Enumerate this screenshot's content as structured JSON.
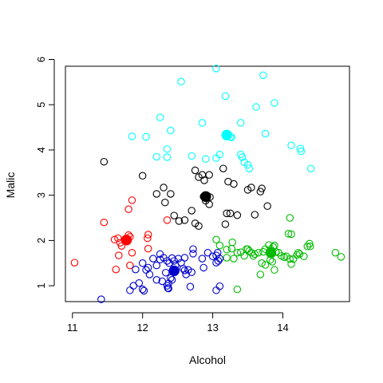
{
  "chart_data": {
    "type": "scatter",
    "xlabel": "Alcohol",
    "ylabel": "Malic",
    "xlim": [
      10.9,
      14.95
    ],
    "ylim": [
      0.65,
      5.85
    ],
    "xticks": [
      11,
      12,
      13,
      14
    ],
    "yticks": [
      1,
      2,
      3,
      4,
      5,
      6
    ],
    "grid": false,
    "legend": "none",
    "series": [
      {
        "color": "#00FFFF",
        "points": [
          [
            13.05,
            5.8
          ],
          [
            13.72,
            5.65
          ],
          [
            12.55,
            5.51
          ],
          [
            13.18,
            5.19
          ],
          [
            13.88,
            5.04
          ],
          [
            13.4,
            4.6
          ],
          [
            12.25,
            4.72
          ],
          [
            13.62,
            4.95
          ],
          [
            12.85,
            4.6
          ],
          [
            12.4,
            4.43
          ],
          [
            11.85,
            4.3
          ],
          [
            12.05,
            4.29
          ],
          [
            13.75,
            4.36
          ],
          [
            13.25,
            4.29
          ],
          [
            14.12,
            4.1
          ],
          [
            12.35,
            4.02
          ],
          [
            14.25,
            4.03
          ],
          [
            13.27,
            4.28
          ],
          [
            14.26,
            3.97
          ],
          [
            12.2,
            3.85
          ],
          [
            12.35,
            3.84
          ],
          [
            12.7,
            3.87
          ],
          [
            12.9,
            3.8
          ],
          [
            13.05,
            3.82
          ],
          [
            13.1,
            3.9
          ],
          [
            13.4,
            3.9
          ],
          [
            13.42,
            3.84
          ],
          [
            13.45,
            3.73
          ],
          [
            13.5,
            3.67
          ],
          [
            13.52,
            3.59
          ],
          [
            14.4,
            3.59
          ]
        ],
        "centroid": [
          13.2,
          4.33
        ]
      },
      {
        "color": "#000000",
        "points": [
          [
            11.45,
            3.74
          ],
          [
            12.0,
            3.43
          ],
          [
            13.15,
            3.59
          ],
          [
            12.75,
            3.55
          ],
          [
            12.85,
            3.45
          ],
          [
            12.95,
            3.45
          ],
          [
            12.8,
            3.4
          ],
          [
            12.88,
            3.33
          ],
          [
            13.22,
            3.3
          ],
          [
            13.3,
            3.25
          ],
          [
            12.3,
            3.17
          ],
          [
            13.55,
            3.17
          ],
          [
            13.5,
            3.12
          ],
          [
            12.2,
            3.03
          ],
          [
            12.4,
            3.03
          ],
          [
            13.68,
            3.08
          ],
          [
            13.7,
            3.15
          ],
          [
            12.87,
            2.97
          ],
          [
            12.92,
            2.99
          ],
          [
            12.96,
            2.96
          ],
          [
            12.32,
            2.84
          ],
          [
            12.9,
            2.88
          ],
          [
            12.95,
            2.8
          ],
          [
            13.78,
            2.76
          ],
          [
            12.7,
            2.66
          ],
          [
            12.45,
            2.55
          ],
          [
            13.2,
            2.6
          ],
          [
            13.25,
            2.6
          ],
          [
            13.35,
            2.56
          ],
          [
            13.6,
            2.57
          ],
          [
            12.52,
            2.43
          ],
          [
            12.6,
            2.45
          ],
          [
            12.75,
            2.38
          ],
          [
            12.8,
            2.32
          ],
          [
            13.18,
            2.36
          ]
        ],
        "centroid": [
          12.9,
          2.97
        ]
      },
      {
        "color": "#FF0000",
        "points": [
          [
            11.85,
            2.89
          ],
          [
            11.8,
            2.69
          ],
          [
            12.35,
            2.45
          ],
          [
            11.45,
            2.4
          ],
          [
            11.8,
            2.12
          ],
          [
            11.82,
            2.08
          ],
          [
            12.08,
            2.13
          ],
          [
            12.07,
            2.05
          ],
          [
            11.6,
            2.02
          ],
          [
            11.65,
            2.05
          ],
          [
            11.68,
            1.95
          ],
          [
            11.7,
            1.88
          ],
          [
            11.85,
            1.73
          ],
          [
            12.08,
            1.82
          ],
          [
            11.66,
            1.67
          ],
          [
            11.82,
            1.45
          ],
          [
            11.62,
            1.36
          ],
          [
            11.03,
            1.51
          ]
        ],
        "centroid": [
          11.77,
          2.01
        ]
      },
      {
        "color": "#00BB00",
        "points": [
          [
            14.1,
            2.5
          ],
          [
            13.05,
            2.02
          ],
          [
            14.08,
            2.15
          ],
          [
            14.12,
            2.14
          ],
          [
            13.28,
            1.96
          ],
          [
            13.1,
            1.89
          ],
          [
            13.2,
            1.8
          ],
          [
            13.27,
            1.82
          ],
          [
            13.35,
            1.73
          ],
          [
            13.4,
            1.74
          ],
          [
            13.48,
            1.81
          ],
          [
            13.52,
            1.77
          ],
          [
            13.55,
            1.73
          ],
          [
            13.58,
            1.66
          ],
          [
            13.6,
            1.7
          ],
          [
            13.65,
            1.73
          ],
          [
            13.72,
            1.75
          ],
          [
            13.75,
            1.81
          ],
          [
            13.8,
            1.9
          ],
          [
            13.83,
            1.8
          ],
          [
            13.86,
            1.86
          ],
          [
            13.88,
            1.89
          ],
          [
            13.9,
            1.75
          ],
          [
            13.94,
            1.73
          ],
          [
            13.98,
            1.66
          ],
          [
            14.02,
            1.63
          ],
          [
            14.05,
            1.65
          ],
          [
            14.1,
            1.59
          ],
          [
            14.15,
            1.59
          ],
          [
            14.2,
            1.68
          ],
          [
            14.22,
            1.73
          ],
          [
            14.24,
            1.7
          ],
          [
            14.3,
            1.65
          ],
          [
            14.35,
            1.87
          ],
          [
            14.38,
            1.93
          ],
          [
            14.39,
            1.87
          ],
          [
            14.75,
            1.73
          ],
          [
            14.83,
            1.64
          ],
          [
            13.2,
            1.62
          ],
          [
            13.3,
            1.6
          ],
          [
            13.45,
            1.66
          ],
          [
            13.7,
            1.5
          ],
          [
            13.75,
            1.46
          ],
          [
            13.82,
            1.57
          ],
          [
            13.85,
            1.53
          ],
          [
            13.88,
            1.35
          ],
          [
            13.68,
            1.25
          ],
          [
            14.12,
            1.48
          ],
          [
            13.35,
            0.92
          ],
          [
            13.5,
            1.81
          ]
        ],
        "centroid": [
          13.83,
          1.73
        ]
      },
      {
        "color": "#0000CC",
        "points": [
          [
            11.41,
            0.7
          ],
          [
            11.82,
            0.9
          ],
          [
            11.95,
            1.06
          ],
          [
            12.02,
            0.89
          ],
          [
            12.2,
            1.13
          ],
          [
            12.28,
            1.1
          ],
          [
            12.35,
            1.0
          ],
          [
            12.36,
            0.95
          ],
          [
            12.37,
            1.05
          ],
          [
            12.4,
            1.17
          ],
          [
            12.42,
            1.13
          ],
          [
            12.6,
            1.34
          ],
          [
            12.62,
            1.25
          ],
          [
            12.65,
            1.35
          ],
          [
            12.7,
            1.3
          ],
          [
            12.68,
            0.98
          ],
          [
            13.05,
            0.9
          ],
          [
            13.1,
            0.99
          ],
          [
            12.0,
            1.5
          ],
          [
            12.05,
            1.35
          ],
          [
            12.08,
            1.4
          ],
          [
            12.1,
            1.25
          ],
          [
            12.15,
            1.6
          ],
          [
            12.2,
            1.45
          ],
          [
            12.25,
            1.7
          ],
          [
            12.3,
            1.62
          ],
          [
            12.35,
            1.55
          ],
          [
            12.38,
            1.5
          ],
          [
            12.42,
            1.61
          ],
          [
            12.45,
            1.55
          ],
          [
            12.47,
            1.45
          ],
          [
            12.51,
            1.6
          ],
          [
            12.55,
            1.51
          ],
          [
            12.58,
            1.38
          ],
          [
            12.6,
            1.62
          ],
          [
            12.72,
            1.71
          ],
          [
            12.72,
            1.81
          ],
          [
            12.85,
            1.6
          ],
          [
            12.87,
            1.4
          ],
          [
            12.93,
            1.73
          ],
          [
            13.0,
            1.65
          ],
          [
            13.05,
            1.51
          ],
          [
            13.05,
            1.67
          ],
          [
            13.07,
            1.73
          ],
          [
            13.08,
            1.55
          ],
          [
            13.1,
            1.6
          ],
          [
            12.0,
            0.92
          ],
          [
            11.9,
            1.36
          ],
          [
            11.87,
            1.0
          ],
          [
            12.25,
            1.58
          ],
          [
            12.33,
            1.29
          ],
          [
            12.37,
            0.94
          ]
        ],
        "centroid": [
          12.45,
          1.33
        ]
      }
    ]
  }
}
